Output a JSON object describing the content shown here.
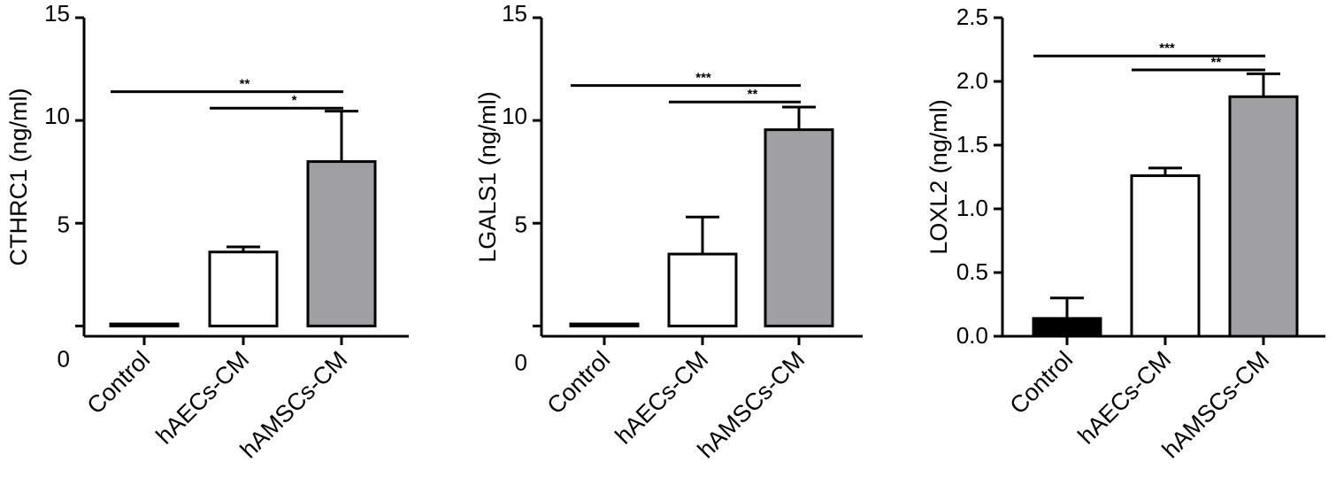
{
  "colors": {
    "black_fill": "#000000",
    "white_fill": "#ffffff",
    "gray_fill": "#a0a0a4",
    "stroke": "#000000"
  },
  "chart_data": [
    {
      "type": "bar",
      "categories": [
        "Control",
        "hAECs-CM",
        "hAMSCs-CM"
      ],
      "values": [
        0.1,
        3.6,
        8.0
      ],
      "errors": [
        0.0,
        0.25,
        2.45
      ],
      "bar_colors": [
        "#000000",
        "#ffffff",
        "#a0a0a4"
      ],
      "ylabel": "CTHRC1 (ng/ml)",
      "ylim": [
        -0.5,
        15
      ],
      "y_ticks": [
        {
          "label": "15",
          "value": 15
        },
        {
          "label": "10",
          "value": 10
        },
        {
          "label": "5",
          "value": 5
        },
        {
          "label": "0",
          "value": 0
        }
      ],
      "significance": [
        {
          "from": 0,
          "to": 2,
          "label": "**",
          "y": 11.4
        },
        {
          "from": 1,
          "to": 2,
          "label": "*",
          "y": 10.6
        }
      ]
    },
    {
      "type": "bar",
      "categories": [
        "Control",
        "hAECs-CM",
        "hAMSCs-CM"
      ],
      "values": [
        0.1,
        3.5,
        9.55
      ],
      "errors": [
        0.0,
        1.8,
        1.1
      ],
      "bar_colors": [
        "#000000",
        "#ffffff",
        "#a0a0a4"
      ],
      "ylabel": "LGALS1 (ng/ml)",
      "ylim": [
        -0.5,
        15
      ],
      "y_ticks": [
        {
          "label": "15",
          "value": 15
        },
        {
          "label": "10",
          "value": 10
        },
        {
          "label": "5",
          "value": 5
        },
        {
          "label": "0",
          "value": 0
        }
      ],
      "significance": [
        {
          "from": 0,
          "to": 2,
          "label": "***",
          "y": 11.7
        },
        {
          "from": 1,
          "to": 2,
          "label": "**",
          "y": 10.9
        }
      ]
    },
    {
      "type": "bar",
      "categories": [
        "Control",
        "hAECs-CM",
        "hAMSCs-CM"
      ],
      "values": [
        0.14,
        1.26,
        1.88
      ],
      "errors": [
        0.16,
        0.06,
        0.18
      ],
      "bar_colors": [
        "#000000",
        "#ffffff",
        "#a0a0a4"
      ],
      "ylabel": "LOXL2 (ng/ml)",
      "ylim": [
        0,
        2.5
      ],
      "y_ticks": [
        {
          "label": "2.5",
          "value": 2.5
        },
        {
          "label": "2.0",
          "value": 2.0
        },
        {
          "label": "1.5",
          "value": 1.5
        },
        {
          "label": "1.0",
          "value": 1.0
        },
        {
          "label": "0.5",
          "value": 0.5
        },
        {
          "label": "0.0",
          "value": 0.0
        }
      ],
      "significance": [
        {
          "from": 0,
          "to": 2,
          "label": "***",
          "y": 2.2
        },
        {
          "from": 1,
          "to": 2,
          "label": "**",
          "y": 2.09
        }
      ]
    }
  ]
}
